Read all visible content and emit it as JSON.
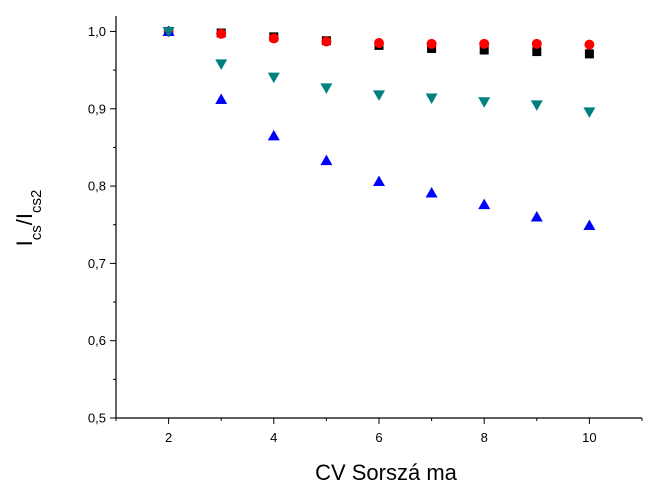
{
  "chart_data": {
    "type": "scatter",
    "xlabel": "CV Sorszá ma",
    "ylabel": {
      "main": "I",
      "sub1": "cs",
      "sep": "/I",
      "sub2": "cs2"
    },
    "xlim": [
      1,
      11
    ],
    "ylim": [
      0.5,
      1.02
    ],
    "x_ticks": [
      2,
      4,
      6,
      8,
      10
    ],
    "x_tick_labels": [
      "2",
      "4",
      "6",
      "8",
      "10"
    ],
    "y_ticks": [
      0.5,
      0.6,
      0.7,
      0.8,
      0.9,
      1.0
    ],
    "y_tick_labels": [
      "0,5",
      "0,6",
      "0,7",
      "0,8",
      "0,9",
      "1,0"
    ],
    "grid": false,
    "legend": "none",
    "series": [
      {
        "marker": "square",
        "color": "#000000",
        "x": [
          2,
          3,
          4,
          5,
          6,
          7,
          8,
          9,
          10
        ],
        "y": [
          1.0,
          0.998,
          0.993,
          0.988,
          0.982,
          0.978,
          0.976,
          0.974,
          0.971
        ]
      },
      {
        "marker": "circle",
        "color": "#ff0000",
        "x": [
          2,
          3,
          4,
          5,
          6,
          7,
          8,
          9,
          10
        ],
        "y": [
          1.0,
          0.997,
          0.991,
          0.987,
          0.985,
          0.984,
          0.984,
          0.984,
          0.983
        ]
      },
      {
        "marker": "triangle-up",
        "color": "#0000ff",
        "x": [
          2,
          3,
          4,
          5,
          6,
          7,
          8,
          9,
          10
        ],
        "y": [
          1.0,
          0.912,
          0.865,
          0.833,
          0.806,
          0.791,
          0.776,
          0.76,
          0.749
        ]
      },
      {
        "marker": "triangle-down",
        "color": "#008080",
        "x": [
          2,
          3,
          4,
          5,
          6,
          7,
          8,
          9,
          10
        ],
        "y": [
          1.0,
          0.958,
          0.941,
          0.927,
          0.918,
          0.914,
          0.909,
          0.905,
          0.896
        ]
      }
    ]
  }
}
